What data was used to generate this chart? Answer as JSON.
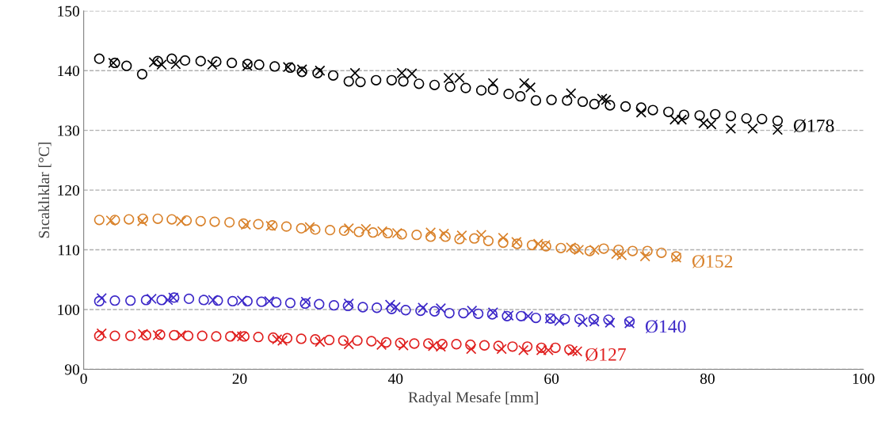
{
  "chart_data": {
    "type": "scatter",
    "xlabel": "Radyal Mesafe [mm]",
    "ylabel": "Sıcaklıklar [°C]",
    "xlim": [
      0,
      100
    ],
    "xticks": [
      0,
      20,
      40,
      60,
      80,
      100
    ],
    "ylim": [
      90,
      150
    ],
    "yticks": [
      90,
      100,
      110,
      120,
      130,
      140,
      150
    ],
    "grid": "y",
    "series": [
      {
        "name": "Ø178",
        "color": "#000000",
        "marker": "circle",
        "x": [
          2,
          4,
          5.5,
          7.5,
          9.5,
          11.3,
          13,
          15,
          17,
          19,
          21,
          22.5,
          24.5,
          26.5,
          28,
          30,
          32,
          34,
          35.5,
          37.5,
          39.5,
          41,
          43,
          45,
          47,
          49,
          51,
          52.5,
          54.5,
          56,
          58,
          60,
          62,
          64,
          65.5,
          67.5,
          69.5,
          71.5,
          73,
          75,
          77,
          79,
          81,
          83,
          85,
          87,
          89
        ],
        "values": [
          142,
          141.3,
          140.8,
          139.4,
          141.6,
          142,
          141.7,
          141.6,
          141.5,
          141.3,
          141.1,
          141,
          140.7,
          140.5,
          139.8,
          139.6,
          139.2,
          138.2,
          138.1,
          138.4,
          138.4,
          138.2,
          137.8,
          137.6,
          137.3,
          137.1,
          136.7,
          136.8,
          136.1,
          135.7,
          135,
          135.1,
          135,
          134.8,
          134.4,
          134.2,
          134,
          133.8,
          133.4,
          133.1,
          132.6,
          132.5,
          132.7,
          132.4,
          132,
          131.9,
          131.6
        ]
      },
      {
        "color": "#000000",
        "marker": "cross",
        "x": [
          3.8,
          9,
          10,
          11.8,
          16.5,
          21,
          26.2,
          28,
          30.3,
          34.8,
          40.8,
          42.1,
          46.8,
          48.2,
          52.5,
          56.5,
          57.3,
          62.5,
          66.5,
          67,
          71.5,
          75.8,
          76.7,
          79.5,
          80.5,
          83,
          85.8,
          89
        ],
        "values": [
          141.3,
          141.4,
          141,
          141.1,
          141,
          140.8,
          140.6,
          140.2,
          140,
          139.6,
          139.6,
          139.5,
          138.8,
          138.8,
          137.9,
          137.9,
          137.2,
          136.2,
          135.3,
          135.1,
          133,
          131.8,
          131.8,
          131.2,
          131,
          130.3,
          130.3,
          130.1
        ]
      },
      {
        "name": "Ø152",
        "color": "#d9822b",
        "marker": "circle",
        "x": [
          2,
          4,
          5.8,
          7.6,
          9.5,
          11.3,
          13.2,
          15,
          16.8,
          18.7,
          20.5,
          22.4,
          24.2,
          26,
          27.9,
          29.7,
          31.6,
          33.4,
          35.3,
          37.1,
          39,
          40.8,
          42.7,
          44.5,
          46.4,
          48.2,
          50.1,
          51.9,
          53.8,
          55.6,
          57.5,
          59.3,
          61.2,
          63,
          64.9,
          66.7,
          68.6,
          70.4,
          72.3,
          74.1,
          76
        ],
        "values": [
          115,
          115,
          115.1,
          115.2,
          115.2,
          115.1,
          114.9,
          114.8,
          114.7,
          114.6,
          114.4,
          114.3,
          114.1,
          113.9,
          113.6,
          113.4,
          113.3,
          113.2,
          113,
          112.9,
          112.8,
          112.6,
          112.5,
          112.2,
          112.2,
          111.8,
          111.9,
          111.5,
          111.2,
          111,
          110.8,
          110.6,
          110.3,
          110.2,
          109.8,
          110.2,
          110,
          109.8,
          109.8,
          109.5,
          108.9
        ]
      },
      {
        "color": "#d9822b",
        "marker": "cross",
        "x": [
          3.5,
          7.5,
          12.5,
          20.8,
          24,
          29,
          34,
          36.2,
          38.3,
          40.2,
          44.5,
          46.2,
          48.5,
          51,
          53.8,
          55.5,
          58.3,
          59.2,
          62.5,
          63.5,
          65.5,
          68.3,
          69,
          72,
          76
        ],
        "values": [
          114.9,
          114.8,
          114.8,
          114.2,
          114,
          113.8,
          113.6,
          113.5,
          113.1,
          112.8,
          112.9,
          112.7,
          112.4,
          112.5,
          112,
          111.3,
          111,
          110.8,
          110.4,
          110,
          110,
          109.3,
          109.1,
          108.9,
          108.7
        ]
      },
      {
        "name": "Ø140",
        "color": "#3c28c8",
        "marker": "circle",
        "x": [
          2,
          4,
          6,
          8,
          10,
          11.6,
          13.5,
          15.4,
          17.2,
          19.1,
          21,
          22.8,
          24.7,
          26.5,
          28.4,
          30.2,
          32.1,
          33.9,
          35.8,
          37.6,
          39.5,
          41.3,
          43.2,
          45,
          46.9,
          48.7,
          50.6,
          52.4,
          54.3,
          56.1,
          58,
          59.9,
          61.7,
          63.6,
          65.4,
          67.3,
          70
        ],
        "values": [
          101.4,
          101.5,
          101.5,
          101.6,
          101.6,
          102,
          101.8,
          101.6,
          101.5,
          101.4,
          101.4,
          101.3,
          101.2,
          101.1,
          101,
          100.9,
          100.7,
          100.6,
          100.4,
          100.3,
          100.1,
          99.9,
          99.8,
          99.7,
          99.4,
          99.4,
          99.3,
          99.2,
          98.9,
          98.9,
          98.6,
          98.5,
          98.4,
          98.4,
          98.4,
          98.3,
          98
        ]
      },
      {
        "color": "#3c28c8",
        "marker": "cross",
        "x": [
          2.3,
          8.7,
          10.8,
          11.5,
          16.6,
          20.3,
          23.8,
          28.5,
          34,
          39.3,
          40,
          43.5,
          45.8,
          49.8,
          52.5,
          54.5,
          57,
          59.8,
          61,
          64,
          65.5,
          67.5,
          70
        ],
        "values": [
          101.9,
          101.8,
          101.6,
          102,
          101.6,
          101.5,
          101.4,
          101.3,
          101,
          100.8,
          100.4,
          100.3,
          100.2,
          99.8,
          99.5,
          99,
          98.9,
          98.5,
          98.1,
          97.9,
          98,
          97.8,
          97.7
        ]
      },
      {
        "name": "Ø127",
        "color": "#e0201f",
        "marker": "circle",
        "x": [
          2,
          4,
          6,
          8,
          9.8,
          11.6,
          13.4,
          15.2,
          17,
          18.8,
          20.6,
          22.4,
          24.3,
          26.1,
          27.9,
          29.7,
          31.5,
          33.3,
          35.1,
          36.9,
          38.8,
          40.6,
          42.4,
          44.2,
          46,
          47.8,
          49.6,
          51.4,
          53.2,
          55,
          56.9,
          58.7,
          60.5,
          62.3
        ],
        "values": [
          95.6,
          95.6,
          95.6,
          95.7,
          95.8,
          95.7,
          95.6,
          95.6,
          95.5,
          95.5,
          95.5,
          95.4,
          95.3,
          95.2,
          95.1,
          95,
          94.9,
          94.8,
          94.8,
          94.7,
          94.5,
          94.4,
          94.3,
          94.3,
          94.2,
          94.2,
          94.1,
          94,
          93.9,
          93.8,
          93.8,
          93.6,
          93.6,
          93.3
        ]
      },
      {
        "color": "#e0201f",
        "marker": "cross",
        "x": [
          2.3,
          7.6,
          9.5,
          12.5,
          19.6,
          20.3,
          24.8,
          25.5,
          30.3,
          34,
          38.2,
          41,
          44.8,
          45.8,
          49.7,
          53.6,
          56.4,
          58.7,
          59.6,
          62.7,
          63.3
        ],
        "values": [
          96,
          95.9,
          95.7,
          95.7,
          95.6,
          95.5,
          95,
          94.8,
          94.6,
          94.2,
          94.1,
          94,
          93.9,
          93.8,
          93.4,
          93.4,
          93.2,
          93.2,
          93.2,
          93.1,
          93
        ]
      }
    ]
  }
}
